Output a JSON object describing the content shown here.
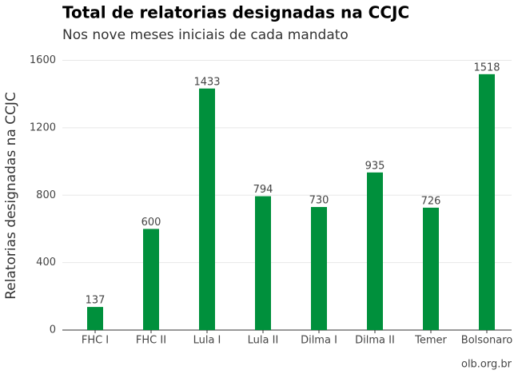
{
  "chart_data": {
    "type": "bar",
    "title": "Total de relatorias designadas na CCJC",
    "subtitle": "Nos nove meses iniciais de cada mandato",
    "y_label": "Relatorias designadas na CCJC",
    "caption": "olb.org.br",
    "categories": [
      "FHC I",
      "FHC II",
      "Lula I",
      "Lula II",
      "Dilma I",
      "Dilma II",
      "Temer",
      "Bolsonaro"
    ],
    "values": [
      137,
      600,
      1433,
      794,
      730,
      935,
      726,
      1518
    ],
    "color": "#00903c",
    "ylim": [
      0,
      1650
    ],
    "yticks": [
      0,
      400,
      800,
      1200,
      1600
    ],
    "grid": true
  }
}
